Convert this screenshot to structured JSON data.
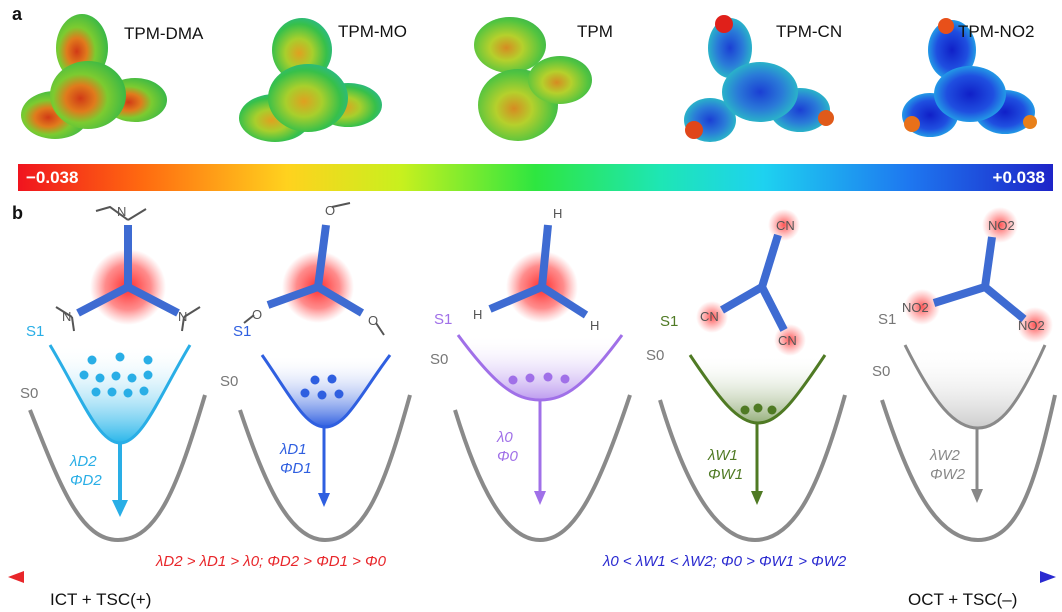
{
  "panel_a": {
    "letter": "a",
    "molecules": [
      "TPM-DMA",
      "TPM-MO",
      "TPM",
      "TPM-CN",
      "TPM-NO2"
    ],
    "colorbar": {
      "min_label": "−0.038",
      "max_label": "+0.038"
    }
  },
  "panel_b": {
    "letter": "b",
    "excited_state": "S1",
    "ground_state": "S0",
    "substituent_labels": {
      "amine": "N",
      "methoxy": "O",
      "hydrogen": "H",
      "cyano": "CN",
      "nitro": "NO2"
    },
    "emissions": [
      {
        "lambda": "λD2",
        "phi": "ΦD2",
        "color": "#29aee6"
      },
      {
        "lambda": "λD1",
        "phi": "ΦD1",
        "color": "#2f5fe0"
      },
      {
        "lambda": "λ0",
        "phi": "Φ0",
        "color": "#a070e8"
      },
      {
        "lambda": "λW1",
        "phi": "ΦW1",
        "color": "#4f7a24"
      },
      {
        "lambda": "λW2",
        "phi": "ΦW2",
        "color": "#888888"
      }
    ],
    "left_relation": "λD2 > λD1 > λ0; ΦD2 > ΦD1 > Φ0",
    "right_relation": "λ0 < λW1 < λW2; Φ0 > ΦW1 > ΦW2",
    "left_axis_label": "ICT + TSC(+)",
    "right_axis_label": "OCT + TSC(–)"
  },
  "colors": {
    "red": "#e8262a",
    "blue": "#2a2ad0",
    "gray": "#8a8a8a"
  }
}
